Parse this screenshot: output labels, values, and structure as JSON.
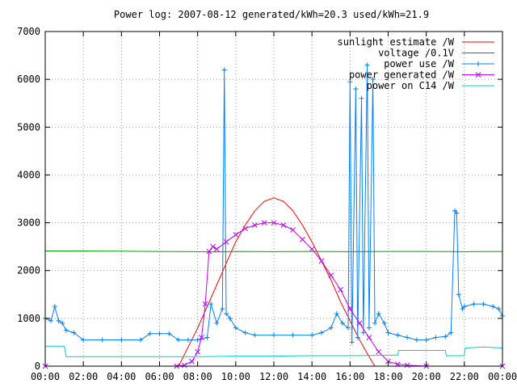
{
  "chart_data": {
    "type": "line",
    "title": "Power log: 2007-08-12 generated/kWh=20.3 used/kWh=21.9",
    "xlabel": "",
    "ylabel": "",
    "xlim": [
      0,
      24
    ],
    "ylim": [
      0,
      7000
    ],
    "x_ticks": [
      "00:00",
      "02:00",
      "04:00",
      "06:00",
      "08:00",
      "10:00",
      "12:00",
      "14:00",
      "16:00",
      "18:00",
      "20:00",
      "22:00",
      "00:00"
    ],
    "y_ticks": [
      0,
      1000,
      2000,
      3000,
      4000,
      5000,
      6000,
      7000
    ],
    "grid": true,
    "legend_position": "top-right",
    "series": [
      {
        "name": "sunlight estimate /W",
        "color": "#ff0000",
        "style": "line",
        "points": [
          [
            7.0,
            0
          ],
          [
            7.5,
            400
          ],
          [
            8.0,
            800
          ],
          [
            8.5,
            1250
          ],
          [
            9.0,
            1700
          ],
          [
            9.5,
            2150
          ],
          [
            10.0,
            2600
          ],
          [
            10.5,
            2950
          ],
          [
            11.0,
            3250
          ],
          [
            11.5,
            3450
          ],
          [
            12.0,
            3520
          ],
          [
            12.5,
            3450
          ],
          [
            13.0,
            3250
          ],
          [
            13.5,
            2950
          ],
          [
            14.0,
            2600
          ],
          [
            14.5,
            2200
          ],
          [
            15.0,
            1800
          ],
          [
            15.5,
            1350
          ],
          [
            16.0,
            950
          ],
          [
            16.5,
            550
          ],
          [
            17.0,
            200
          ],
          [
            17.3,
            0
          ]
        ]
      },
      {
        "name": "voltage /0.1V",
        "color": "#00a000",
        "style": "line",
        "points": [
          [
            0,
            2410
          ],
          [
            2,
            2410
          ],
          [
            4,
            2405
          ],
          [
            6,
            2400
          ],
          [
            8,
            2395
          ],
          [
            9,
            2390
          ],
          [
            10,
            2400
          ],
          [
            12,
            2395
          ],
          [
            14,
            2400
          ],
          [
            16,
            2395
          ],
          [
            18,
            2400
          ],
          [
            20,
            2400
          ],
          [
            22,
            2395
          ],
          [
            24,
            2400
          ]
        ]
      },
      {
        "name": "power use /W",
        "color": "#0080ff",
        "style": "linespoints",
        "points": [
          [
            0,
            1000
          ],
          [
            0.3,
            950
          ],
          [
            0.5,
            1250
          ],
          [
            0.7,
            950
          ],
          [
            0.9,
            900
          ],
          [
            1.1,
            750
          ],
          [
            1.5,
            700
          ],
          [
            2.0,
            550
          ],
          [
            3.0,
            550
          ],
          [
            4.0,
            550
          ],
          [
            5.0,
            550
          ],
          [
            5.5,
            680
          ],
          [
            6.0,
            680
          ],
          [
            6.5,
            680
          ],
          [
            7.0,
            550
          ],
          [
            7.5,
            550
          ],
          [
            8.0,
            550
          ],
          [
            8.5,
            600
          ],
          [
            8.7,
            1300
          ],
          [
            9.0,
            900
          ],
          [
            9.3,
            1200
          ],
          [
            9.4,
            6200
          ],
          [
            9.5,
            1100
          ],
          [
            9.7,
            1000
          ],
          [
            10.0,
            800
          ],
          [
            10.5,
            700
          ],
          [
            11.0,
            650
          ],
          [
            12.0,
            650
          ],
          [
            13.0,
            650
          ],
          [
            14.0,
            650
          ],
          [
            14.5,
            700
          ],
          [
            15.0,
            800
          ],
          [
            15.3,
            1100
          ],
          [
            15.6,
            900
          ],
          [
            15.9,
            800
          ],
          [
            16.0,
            5950
          ],
          [
            16.1,
            500
          ],
          [
            16.3,
            5800
          ],
          [
            16.4,
            600
          ],
          [
            16.6,
            5600
          ],
          [
            16.7,
            700
          ],
          [
            16.9,
            6300
          ],
          [
            17.0,
            800
          ],
          [
            17.2,
            6000
          ],
          [
            17.3,
            900
          ],
          [
            17.5,
            1100
          ],
          [
            17.8,
            900
          ],
          [
            18.0,
            700
          ],
          [
            18.5,
            650
          ],
          [
            19.0,
            600
          ],
          [
            19.5,
            550
          ],
          [
            20.0,
            550
          ],
          [
            20.5,
            600
          ],
          [
            21.0,
            620
          ],
          [
            21.3,
            700
          ],
          [
            21.5,
            3250
          ],
          [
            21.6,
            3200
          ],
          [
            21.7,
            1500
          ],
          [
            21.9,
            1200
          ],
          [
            22.0,
            1250
          ],
          [
            22.5,
            1300
          ],
          [
            23.0,
            1300
          ],
          [
            23.5,
            1250
          ],
          [
            23.8,
            1200
          ],
          [
            24.0,
            1050
          ]
        ]
      },
      {
        "name": "power generated /W",
        "color": "#c000ff",
        "style": "linespoints",
        "points": [
          [
            0,
            0
          ],
          [
            6.9,
            0
          ],
          [
            7.3,
            20
          ],
          [
            7.7,
            100
          ],
          [
            8.0,
            300
          ],
          [
            8.2,
            600
          ],
          [
            8.4,
            1300
          ],
          [
            8.6,
            2400
          ],
          [
            8.8,
            2500
          ],
          [
            9.0,
            2450
          ],
          [
            9.5,
            2600
          ],
          [
            10.0,
            2750
          ],
          [
            10.5,
            2880
          ],
          [
            11.0,
            2950
          ],
          [
            11.5,
            3000
          ],
          [
            12.0,
            3000
          ],
          [
            12.5,
            2950
          ],
          [
            13.0,
            2850
          ],
          [
            13.5,
            2650
          ],
          [
            14.0,
            2450
          ],
          [
            14.5,
            2200
          ],
          [
            15.0,
            1900
          ],
          [
            15.5,
            1600
          ],
          [
            16.0,
            1200
          ],
          [
            16.5,
            900
          ],
          [
            17.0,
            600
          ],
          [
            17.5,
            300
          ],
          [
            18.0,
            100
          ],
          [
            18.5,
            40
          ],
          [
            19.0,
            20
          ],
          [
            20.0,
            0
          ],
          [
            24.0,
            0
          ]
        ]
      },
      {
        "name": "power on C14 /W",
        "color": "#00d0d0",
        "style": "line",
        "points": [
          [
            0,
            420
          ],
          [
            1.0,
            420
          ],
          [
            1.1,
            200
          ],
          [
            4.0,
            200
          ],
          [
            6.0,
            200
          ],
          [
            8.0,
            200
          ],
          [
            10.0,
            210
          ],
          [
            12.0,
            210
          ],
          [
            14.0,
            220
          ],
          [
            16.0,
            220
          ],
          [
            18.0,
            230
          ],
          [
            18.5,
            230
          ],
          [
            18.55,
            330
          ],
          [
            20.0,
            330
          ],
          [
            21.0,
            330
          ],
          [
            21.05,
            220
          ],
          [
            22.0,
            220
          ],
          [
            22.05,
            380
          ],
          [
            23.0,
            400
          ],
          [
            24.0,
            380
          ]
        ]
      }
    ]
  }
}
